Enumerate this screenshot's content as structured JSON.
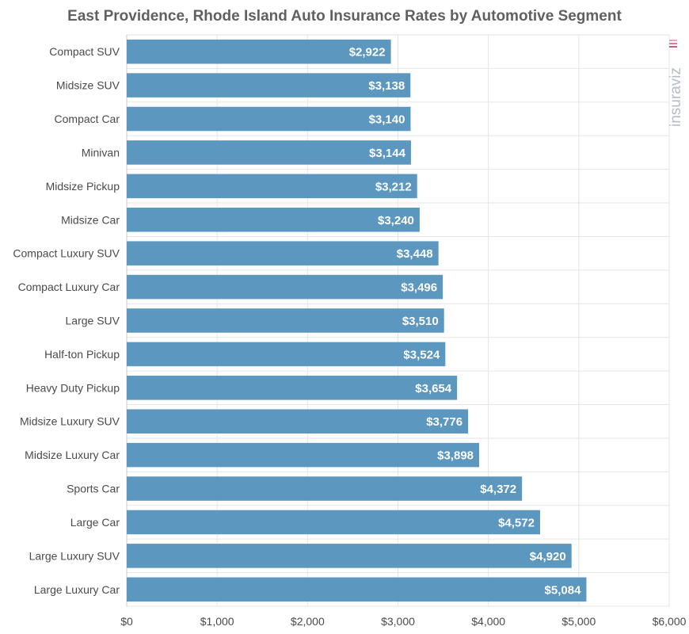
{
  "chart_data": {
    "type": "bar",
    "orientation": "horizontal",
    "title": "East Providence, Rhode Island Auto Insurance Rates by Automotive Segment",
    "categories": [
      "Compact SUV",
      "Midsize SUV",
      "Compact Car",
      "Minivan",
      "Midsize Pickup",
      "Midsize Car",
      "Compact Luxury SUV",
      "Compact Luxury Car",
      "Large SUV",
      "Half-ton Pickup",
      "Heavy Duty Pickup",
      "Midsize Luxury SUV",
      "Midsize Luxury Car",
      "Sports Car",
      "Large Car",
      "Large Luxury SUV",
      "Large Luxury Car"
    ],
    "values": [
      2922,
      3138,
      3140,
      3144,
      3212,
      3240,
      3448,
      3496,
      3510,
      3524,
      3654,
      3776,
      3898,
      4372,
      4572,
      4920,
      5084
    ],
    "value_labels": [
      "$2,922",
      "$3,138",
      "$3,140",
      "$3,144",
      "$3,212",
      "$3,240",
      "$3,448",
      "$3,496",
      "$3,510",
      "$3,524",
      "$3,654",
      "$3,776",
      "$3,898",
      "$4,372",
      "$4,572",
      "$4,920",
      "$5,084"
    ],
    "x_ticks": [
      0,
      1000,
      2000,
      3000,
      4000,
      5000,
      6000
    ],
    "x_tick_labels": [
      "$0",
      "$1,000",
      "$2,000",
      "$3,000",
      "$4,000",
      "$5,000",
      "$6,000"
    ],
    "xlim": [
      0,
      6000
    ],
    "xlabel": "",
    "ylabel": "",
    "grid": true,
    "legend": "none",
    "bar_color": "#5b97bf"
  },
  "watermark": {
    "text": "insuraviz"
  }
}
